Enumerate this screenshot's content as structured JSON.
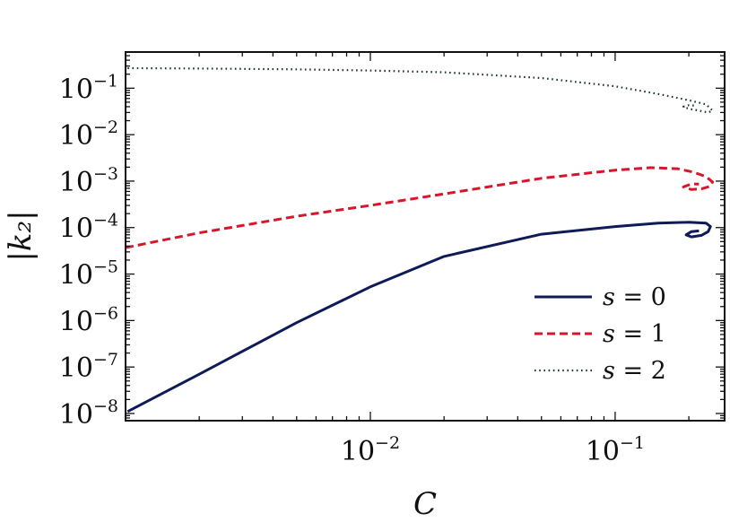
{
  "chart_data": {
    "type": "line",
    "xlabel": "C",
    "ylabel": "|k₂|",
    "xscale": "log",
    "yscale": "log",
    "xlim": [
      0.001,
      0.28
    ],
    "ylim": [
      7e-09,
      0.6
    ],
    "x_ticks": [
      {
        "value": 0.01,
        "base": "10",
        "exp": "−2"
      },
      {
        "value": 0.1,
        "base": "10",
        "exp": "−1"
      }
    ],
    "y_ticks": [
      {
        "value": 0.1,
        "base": "10",
        "exp": "−1"
      },
      {
        "value": 0.01,
        "base": "10",
        "exp": "−2"
      },
      {
        "value": 0.001,
        "base": "10",
        "exp": "−3"
      },
      {
        "value": 0.0001,
        "base": "10",
        "exp": "−4"
      },
      {
        "value": 1e-05,
        "base": "10",
        "exp": "−5"
      },
      {
        "value": 1e-06,
        "base": "10",
        "exp": "−6"
      },
      {
        "value": 1e-07,
        "base": "10",
        "exp": "−7"
      },
      {
        "value": 1e-08,
        "base": "10",
        "exp": "−8"
      }
    ],
    "grid": false,
    "legend_position": "bottom-right",
    "series": [
      {
        "name": "s = 0",
        "var": "s",
        "val": "0",
        "color": "#0f1b57",
        "style": "solid",
        "x": [
          0.00102,
          0.002,
          0.005,
          0.01,
          0.02,
          0.05,
          0.1,
          0.15,
          0.2,
          0.235,
          0.245,
          0.24,
          0.225,
          0.205,
          0.195,
          0.205,
          0.22
        ],
        "y": [
          1.1e-08,
          7e-08,
          9e-07,
          5.3e-06,
          2.4e-05,
          7.2e-05,
          0.000105,
          0.000125,
          0.00013,
          0.000125,
          0.000105,
          8.2e-05,
          6.8e-05,
          6.3e-05,
          7e-05,
          8.2e-05,
          8.5e-05
        ]
      },
      {
        "name": "s = 1",
        "var": "s",
        "val": "1",
        "color": "#d9152b",
        "style": "dashed",
        "x": [
          0.001,
          0.002,
          0.005,
          0.01,
          0.02,
          0.05,
          0.1,
          0.14,
          0.18,
          0.21,
          0.235,
          0.25,
          0.245,
          0.225,
          0.205,
          0.19,
          0.205,
          0.22
        ],
        "y": [
          3.7e-05,
          7.7e-05,
          0.000175,
          0.0003,
          0.00053,
          0.00115,
          0.00172,
          0.00195,
          0.00185,
          0.00155,
          0.00125,
          0.00096,
          0.00078,
          0.00068,
          0.00066,
          0.00075,
          0.00087,
          0.00086
        ]
      },
      {
        "name": "s = 2",
        "var": "s",
        "val": "2",
        "color": "#1e3a2c",
        "style": "dotted",
        "x": [
          0.00102,
          0.002,
          0.005,
          0.01,
          0.02,
          0.05,
          0.1,
          0.15,
          0.2,
          0.235,
          0.25,
          0.24,
          0.22,
          0.2,
          0.19,
          0.2,
          0.215
        ],
        "y": [
          0.27,
          0.265,
          0.255,
          0.24,
          0.22,
          0.165,
          0.11,
          0.075,
          0.055,
          0.045,
          0.033,
          0.03,
          0.033,
          0.036,
          0.04,
          0.043,
          0.042
        ]
      }
    ]
  }
}
